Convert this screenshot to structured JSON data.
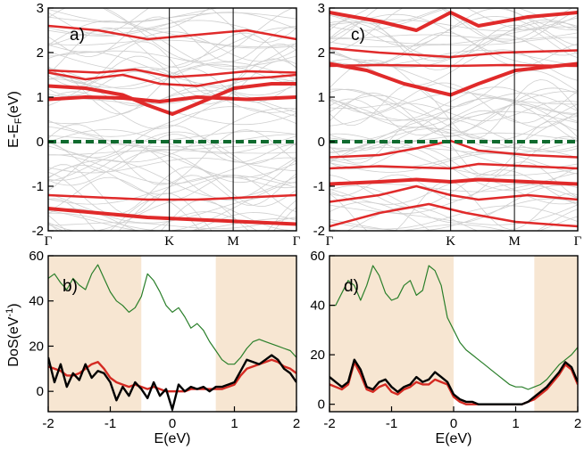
{
  "figure": {
    "ylabel_top_prefix": "E-E",
    "ylabel_top_sub": "F",
    "ylabel_top_suffix": "(eV)",
    "ylabel_bottom_prefix": "DoS(eV",
    "ylabel_bottom_sup": "-1",
    "ylabel_bottom_suffix": ")",
    "xlabel_bottom_left": "E(eV)",
    "xlabel_bottom_right": "E(eV)"
  },
  "colors": {
    "band_gray": "#cfcfcf",
    "band_red": "#e02a2a",
    "fermi": "#0f6a2e",
    "dos_total": "#2a7f2a",
    "dos_red": "#d42a22",
    "dos_black": "#000000",
    "shade": "#f7e6d2"
  },
  "chart_data": [
    {
      "panel": "a)",
      "type": "line",
      "title": "",
      "ylim": [
        -2,
        3
      ],
      "yticks": [
        "-2",
        "-1",
        "0",
        "1",
        "2",
        "3"
      ],
      "kpoints": [
        "Γ",
        "K",
        "M",
        "Γ"
      ],
      "kpositions": [
        0,
        0.488,
        0.745,
        1
      ],
      "fermi_level": 0,
      "highlight_bands": [
        {
          "x": [
            0,
            0.15,
            0.3,
            0.4,
            0.5,
            0.6,
            0.75,
            0.9,
            1
          ],
          "y": [
            1.25,
            1.2,
            1.05,
            0.82,
            0.62,
            0.85,
            1.2,
            1.3,
            1.3
          ]
        },
        {
          "x": [
            0,
            0.15,
            0.3,
            0.45,
            0.6,
            0.75,
            0.9,
            1
          ],
          "y": [
            1.55,
            1.4,
            1.5,
            1.3,
            1.25,
            1.4,
            1.45,
            1.5
          ]
        },
        {
          "x": [
            0,
            0.2,
            0.35,
            0.5,
            0.65,
            0.8,
            1
          ],
          "y": [
            1.6,
            1.55,
            1.62,
            1.45,
            1.5,
            1.58,
            1.55
          ]
        },
        {
          "x": [
            0,
            0.15,
            0.3,
            0.45,
            0.6,
            0.8,
            1
          ],
          "y": [
            0.95,
            1.0,
            0.98,
            0.9,
            1.0,
            0.95,
            1.0
          ]
        },
        {
          "x": [
            0,
            0.2,
            0.4,
            0.6,
            0.8,
            1
          ],
          "y": [
            2.6,
            2.5,
            2.3,
            2.4,
            2.5,
            2.3
          ]
        },
        {
          "x": [
            0,
            0.2,
            0.4,
            0.6,
            0.8,
            1
          ],
          "y": [
            -1.2,
            -1.25,
            -1.3,
            -1.3,
            -1.25,
            -1.2
          ]
        },
        {
          "x": [
            0,
            0.2,
            0.4,
            0.6,
            0.8,
            1
          ],
          "y": [
            -1.5,
            -1.6,
            -1.7,
            -1.75,
            -1.8,
            -1.85
          ]
        }
      ]
    },
    {
      "panel": "c)",
      "type": "line",
      "title": "",
      "ylim": [
        -2,
        3
      ],
      "yticks": [
        "-2",
        "-1",
        "0",
        "1",
        "2",
        "3"
      ],
      "kpoints": [
        "Γ",
        "K",
        "M",
        "Γ"
      ],
      "kpositions": [
        0,
        0.488,
        0.745,
        1
      ],
      "fermi_level": 0,
      "highlight_bands": [
        {
          "x": [
            0,
            0.15,
            0.3,
            0.488,
            0.6,
            0.75,
            1
          ],
          "y": [
            1.75,
            1.6,
            1.3,
            1.05,
            1.3,
            1.6,
            1.75
          ]
        },
        {
          "x": [
            0,
            0.2,
            0.488,
            0.7,
            1
          ],
          "y": [
            1.7,
            1.72,
            1.7,
            1.72,
            1.7
          ]
        },
        {
          "x": [
            0,
            0.2,
            0.488,
            0.7,
            1
          ],
          "y": [
            2.1,
            2.0,
            1.9,
            2.0,
            2.05
          ]
        },
        {
          "x": [
            0,
            0.2,
            0.35,
            0.488,
            0.6,
            0.8,
            1
          ],
          "y": [
            2.9,
            2.7,
            2.5,
            2.9,
            2.6,
            2.8,
            2.9
          ]
        },
        {
          "x": [
            0,
            0.2,
            0.35,
            0.488,
            0.6,
            0.8,
            1
          ],
          "y": [
            -0.35,
            -0.3,
            -0.15,
            0.02,
            -0.2,
            -0.3,
            -0.35
          ]
        },
        {
          "x": [
            0,
            0.2,
            0.35,
            0.488,
            0.6,
            0.8,
            1
          ],
          "y": [
            -0.6,
            -0.55,
            -0.58,
            -0.6,
            -0.5,
            -0.55,
            -0.6
          ]
        },
        {
          "x": [
            0,
            0.2,
            0.35,
            0.488,
            0.6,
            0.8,
            1
          ],
          "y": [
            -0.95,
            -0.9,
            -0.85,
            -0.9,
            -0.85,
            -0.9,
            -0.95
          ]
        },
        {
          "x": [
            0,
            0.2,
            0.35,
            0.488,
            0.6,
            0.8,
            1
          ],
          "y": [
            -1.35,
            -1.2,
            -1.0,
            -1.2,
            -1.3,
            -1.2,
            -1.3
          ]
        },
        {
          "x": [
            0,
            0.2,
            0.4,
            0.55,
            0.75,
            1
          ],
          "y": [
            -1.9,
            -1.6,
            -1.4,
            -1.6,
            -1.8,
            -1.9
          ]
        }
      ]
    },
    {
      "panel": "b)",
      "type": "line",
      "title": "",
      "xlabel": "E(eV)",
      "ylabel": "DoS(eV-1)",
      "xlim": [
        -2,
        2
      ],
      "ylim": [
        -9,
        60
      ],
      "xticks": [
        "-2",
        "-1",
        "0",
        "1",
        "2"
      ],
      "yticks": [
        "0",
        "20",
        "40",
        "60"
      ],
      "shaded_ranges": [
        [
          -2,
          -0.5
        ],
        [
          0.7,
          2
        ]
      ],
      "series": [
        {
          "name": "total",
          "color": "#2a7f2a",
          "x": [
            -2,
            -1.9,
            -1.8,
            -1.7,
            -1.6,
            -1.5,
            -1.4,
            -1.3,
            -1.2,
            -1.1,
            -1.0,
            -0.9,
            -0.8,
            -0.7,
            -0.6,
            -0.5,
            -0.4,
            -0.3,
            -0.2,
            -0.1,
            0.0,
            0.1,
            0.2,
            0.3,
            0.4,
            0.5,
            0.6,
            0.7,
            0.8,
            0.9,
            1.0,
            1.1,
            1.2,
            1.3,
            1.4,
            1.5,
            1.6,
            1.7,
            1.8,
            1.9,
            2.0
          ],
          "y": [
            50,
            52,
            48,
            45,
            50,
            47,
            45,
            52,
            56,
            50,
            44,
            40,
            38,
            35,
            37,
            42,
            52,
            49,
            44,
            38,
            35,
            37,
            33,
            28,
            30,
            27,
            22,
            18,
            14,
            12,
            12,
            15,
            19,
            22,
            23,
            22,
            21,
            20,
            19,
            18,
            15
          ]
        },
        {
          "name": "red",
          "color": "#d42a22",
          "x": [
            -2,
            -1.9,
            -1.8,
            -1.7,
            -1.6,
            -1.5,
            -1.4,
            -1.3,
            -1.2,
            -1.1,
            -1.0,
            -0.9,
            -0.8,
            -0.7,
            -0.6,
            -0.5,
            -0.4,
            -0.3,
            -0.2,
            -0.1,
            0.0,
            0.1,
            0.2,
            0.3,
            0.4,
            0.5,
            0.6,
            0.7,
            0.8,
            0.9,
            1.0,
            1.1,
            1.2,
            1.3,
            1.4,
            1.5,
            1.6,
            1.7,
            1.8,
            1.9,
            2.0
          ],
          "y": [
            11,
            10,
            9,
            7,
            7,
            8,
            10,
            12,
            13,
            10,
            6,
            4,
            3,
            2,
            3,
            2,
            1,
            2,
            1,
            0,
            0,
            0,
            0,
            1,
            1,
            1,
            1,
            1,
            1,
            2,
            3,
            7,
            10,
            11,
            12,
            13,
            14,
            13,
            11,
            10,
            8
          ]
        },
        {
          "name": "black",
          "color": "#000000",
          "x": [
            -2,
            -1.9,
            -1.8,
            -1.7,
            -1.6,
            -1.5,
            -1.4,
            -1.3,
            -1.2,
            -1.1,
            -1.0,
            -0.9,
            -0.8,
            -0.7,
            -0.6,
            -0.5,
            -0.4,
            -0.3,
            -0.2,
            -0.1,
            0.0,
            0.1,
            0.2,
            0.3,
            0.4,
            0.5,
            0.6,
            0.7,
            0.8,
            0.9,
            1.0,
            1.1,
            1.2,
            1.3,
            1.4,
            1.5,
            1.6,
            1.7,
            1.8,
            1.9,
            2.0
          ],
          "y": [
            15,
            4,
            12,
            2,
            8,
            5,
            12,
            6,
            9,
            8,
            4,
            -4,
            2,
            -2,
            4,
            1,
            -3,
            4,
            -2,
            1,
            -8,
            3,
            0,
            2,
            1,
            2,
            0,
            2,
            2,
            3,
            4,
            9,
            14,
            13,
            12,
            14,
            16,
            14,
            10,
            8,
            4
          ]
        }
      ]
    },
    {
      "panel": "d)",
      "type": "line",
      "title": "",
      "xlabel": "E(eV)",
      "xlim": [
        -2,
        2
      ],
      "ylim": [
        -3,
        60
      ],
      "xticks": [
        "-2",
        "-1",
        "0",
        "1",
        "2"
      ],
      "yticks": [
        "0",
        "20",
        "40",
        "60"
      ],
      "shaded_ranges": [
        [
          -2,
          0.0
        ],
        [
          1.3,
          2
        ]
      ],
      "series": [
        {
          "name": "total",
          "color": "#2a7f2a",
          "x": [
            -2,
            -1.9,
            -1.8,
            -1.7,
            -1.6,
            -1.5,
            -1.4,
            -1.3,
            -1.2,
            -1.1,
            -1.0,
            -0.9,
            -0.8,
            -0.7,
            -0.6,
            -0.5,
            -0.4,
            -0.3,
            -0.2,
            -0.1,
            0.0,
            0.1,
            0.2,
            0.3,
            0.4,
            0.5,
            0.6,
            0.7,
            0.8,
            0.9,
            1.0,
            1.1,
            1.2,
            1.3,
            1.4,
            1.5,
            1.6,
            1.7,
            1.8,
            1.9,
            2.0
          ],
          "y": [
            40,
            40,
            45,
            50,
            48,
            42,
            48,
            56,
            52,
            45,
            42,
            43,
            48,
            50,
            44,
            46,
            56,
            54,
            48,
            35,
            30,
            25,
            22,
            20,
            18,
            16,
            14,
            12,
            10,
            8,
            7,
            7,
            6,
            7,
            8,
            10,
            13,
            16,
            18,
            20,
            23
          ]
        },
        {
          "name": "red",
          "color": "#d42a22",
          "x": [
            -2,
            -1.9,
            -1.8,
            -1.7,
            -1.6,
            -1.5,
            -1.4,
            -1.3,
            -1.2,
            -1.1,
            -1.0,
            -0.9,
            -0.8,
            -0.7,
            -0.6,
            -0.5,
            -0.4,
            -0.3,
            -0.2,
            -0.1,
            0.0,
            0.1,
            0.2,
            0.3,
            0.4,
            0.5,
            0.6,
            0.7,
            0.8,
            0.9,
            1.0,
            1.1,
            1.2,
            1.3,
            1.4,
            1.5,
            1.6,
            1.7,
            1.8,
            1.9,
            2.0
          ],
          "y": [
            8,
            7,
            6,
            8,
            17,
            12,
            6,
            5,
            7,
            8,
            5,
            4,
            6,
            7,
            9,
            8,
            8,
            10,
            9,
            8,
            3,
            1,
            0,
            0,
            0,
            0,
            0,
            0,
            0,
            0,
            0,
            0,
            1,
            2,
            4,
            6,
            9,
            12,
            16,
            14,
            8
          ]
        },
        {
          "name": "black",
          "color": "#000000",
          "x": [
            -2,
            -1.9,
            -1.8,
            -1.7,
            -1.6,
            -1.5,
            -1.4,
            -1.3,
            -1.2,
            -1.1,
            -1.0,
            -0.9,
            -0.8,
            -0.7,
            -0.6,
            -0.5,
            -0.4,
            -0.3,
            -0.2,
            -0.1,
            0.0,
            0.1,
            0.2,
            0.3,
            0.4,
            0.5,
            0.6,
            0.7,
            0.8,
            0.9,
            1.0,
            1.1,
            1.2,
            1.3,
            1.4,
            1.5,
            1.6,
            1.7,
            1.8,
            1.9,
            2.0
          ],
          "y": [
            11,
            9,
            7,
            9,
            18,
            14,
            7,
            6,
            9,
            10,
            7,
            5,
            7,
            8,
            11,
            9,
            10,
            13,
            11,
            9,
            4,
            2,
            1,
            1,
            0,
            0,
            0,
            0,
            0,
            0,
            0,
            0,
            1,
            3,
            5,
            7,
            10,
            13,
            17,
            15,
            9
          ]
        }
      ]
    }
  ]
}
